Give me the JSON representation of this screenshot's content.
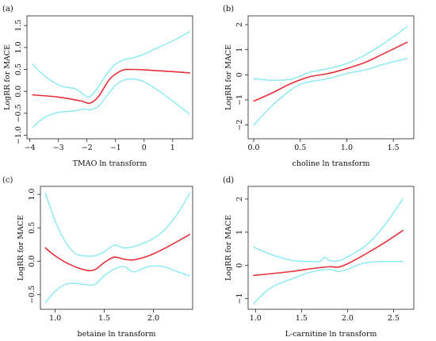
{
  "colors": {
    "fit": "#e8303a",
    "ci": "#7fe8ef",
    "axis": "#222222"
  },
  "chart_data": [
    {
      "panel": "(a)",
      "type": "line",
      "xlabel": "TMAO ln transform",
      "ylabel": "LogRR for MACE",
      "xlim": [
        -4.1,
        1.7
      ],
      "ylim": [
        -1.08,
        1.72
      ],
      "xticks": [
        -4,
        -3,
        -2,
        -1,
        0,
        1
      ],
      "xtick_labels": [
        "−4",
        "−3",
        "−2",
        "−1",
        "0",
        "1"
      ],
      "yticks": [
        -1.0,
        -0.5,
        0.0,
        0.5,
        1.0,
        1.5
      ],
      "ytick_labels": [
        "−1.0",
        "−0.5",
        "0.0",
        "0.5",
        "1.0",
        "1.5"
      ],
      "series": [
        {
          "role": "fit",
          "x": [
            -3.9,
            -3.0,
            -2.2,
            -1.9,
            -1.6,
            -1.2,
            -0.8,
            -0.5,
            0.0,
            0.5,
            1.0,
            1.6
          ],
          "y": [
            -0.08,
            -0.13,
            -0.22,
            -0.27,
            -0.12,
            0.28,
            0.47,
            0.5,
            0.49,
            0.47,
            0.45,
            0.42
          ]
        },
        {
          "role": "upper",
          "x": [
            -3.9,
            -3.6,
            -3.2,
            -2.8,
            -2.4,
            -2.1,
            -1.9,
            -1.6,
            -1.3,
            -1.0,
            -0.7,
            -0.4,
            0.0,
            0.5,
            1.0,
            1.6
          ],
          "y": [
            0.62,
            0.42,
            0.22,
            0.1,
            0.06,
            -0.08,
            -0.12,
            0.1,
            0.4,
            0.62,
            0.72,
            0.76,
            0.85,
            1.0,
            1.15,
            1.36
          ]
        },
        {
          "role": "lower",
          "x": [
            -3.9,
            -3.5,
            -3.0,
            -2.5,
            -2.1,
            -1.9,
            -1.6,
            -1.3,
            -1.0,
            -0.7,
            -0.4,
            0.0,
            0.5,
            1.0,
            1.6
          ],
          "y": [
            -0.82,
            -0.6,
            -0.48,
            -0.45,
            -0.4,
            -0.42,
            -0.34,
            -0.1,
            0.14,
            0.26,
            0.28,
            0.22,
            0.02,
            -0.22,
            -0.52
          ]
        }
      ]
    },
    {
      "panel": "(b)",
      "type": "line",
      "xlabel": "choline ln transform",
      "ylabel": "LogRR for MACE",
      "xlim": [
        -0.06,
        1.72
      ],
      "ylim": [
        -2.55,
        2.35
      ],
      "xticks": [
        0.0,
        0.5,
        1.0,
        1.5
      ],
      "xtick_labels": [
        "0.0",
        "0.5",
        "1.0",
        "1.5"
      ],
      "yticks": [
        -2,
        -1,
        0,
        1,
        2
      ],
      "ytick_labels": [
        "−2",
        "−1",
        "0",
        "1",
        "2"
      ],
      "series": [
        {
          "role": "fit",
          "x": [
            0.0,
            0.2,
            0.4,
            0.6,
            0.8,
            1.0,
            1.2,
            1.4,
            1.65
          ],
          "y": [
            -1.05,
            -0.72,
            -0.35,
            -0.08,
            0.05,
            0.25,
            0.5,
            0.85,
            1.3
          ]
        },
        {
          "role": "upper",
          "x": [
            0.0,
            0.2,
            0.4,
            0.5,
            0.6,
            0.8,
            1.0,
            1.2,
            1.4,
            1.65
          ],
          "y": [
            -0.15,
            -0.22,
            -0.18,
            -0.05,
            0.1,
            0.25,
            0.45,
            0.8,
            1.25,
            1.92
          ]
        },
        {
          "role": "lower",
          "x": [
            0.0,
            0.2,
            0.4,
            0.5,
            0.6,
            0.8,
            1.0,
            1.2,
            1.4,
            1.65
          ],
          "y": [
            -2.0,
            -1.22,
            -0.6,
            -0.38,
            -0.28,
            -0.15,
            0.05,
            0.2,
            0.42,
            0.65
          ]
        }
      ]
    },
    {
      "panel": "(c)",
      "type": "line",
      "xlabel": "betaine ln transform",
      "ylabel": "LogRR for MACE",
      "xlim": [
        0.85,
        2.4
      ],
      "ylim": [
        -0.72,
        1.12
      ],
      "xticks": [
        1.0,
        1.5,
        2.0
      ],
      "xtick_labels": [
        "1.0",
        "1.5",
        "2.0"
      ],
      "yticks": [
        -0.5,
        0.0,
        0.5,
        1.0
      ],
      "ytick_labels": [
        "−0.5",
        "0.0",
        "0.5",
        "1.0"
      ],
      "series": [
        {
          "role": "fit",
          "x": [
            0.9,
            1.0,
            1.15,
            1.3,
            1.4,
            1.5,
            1.6,
            1.7,
            1.8,
            1.95,
            2.1,
            2.25,
            2.37
          ],
          "y": [
            0.2,
            0.08,
            -0.05,
            -0.13,
            -0.13,
            -0.02,
            0.06,
            0.03,
            0.02,
            0.08,
            0.18,
            0.3,
            0.4
          ]
        },
        {
          "role": "upper",
          "x": [
            0.9,
            1.0,
            1.1,
            1.2,
            1.3,
            1.4,
            1.5,
            1.6,
            1.7,
            1.8,
            1.95,
            2.1,
            2.25,
            2.37
          ],
          "y": [
            1.02,
            0.6,
            0.3,
            0.12,
            0.08,
            0.08,
            0.14,
            0.24,
            0.2,
            0.22,
            0.3,
            0.45,
            0.72,
            1.02
          ]
        },
        {
          "role": "lower",
          "x": [
            0.9,
            1.0,
            1.1,
            1.2,
            1.3,
            1.4,
            1.5,
            1.6,
            1.7,
            1.8,
            1.95,
            2.1,
            2.25,
            2.37
          ],
          "y": [
            -0.62,
            -0.45,
            -0.35,
            -0.33,
            -0.35,
            -0.35,
            -0.22,
            -0.12,
            -0.08,
            -0.16,
            -0.08,
            -0.08,
            -0.16,
            -0.22
          ]
        }
      ]
    },
    {
      "panel": "(d)",
      "type": "line",
      "xlabel": "L-carnitine ln transform",
      "ylabel": "LogRR for MACE",
      "xlim": [
        0.92,
        2.72
      ],
      "ylim": [
        -1.32,
        2.38
      ],
      "xticks": [
        1.0,
        1.5,
        2.0,
        2.5
      ],
      "xtick_labels": [
        "1.0",
        "1.5",
        "2.0",
        "2.5"
      ],
      "yticks": [
        -1,
        0,
        1,
        2
      ],
      "ytick_labels": [
        "−1",
        "0",
        "1",
        "2"
      ],
      "series": [
        {
          "role": "fit",
          "x": [
            0.98,
            1.2,
            1.4,
            1.6,
            1.8,
            1.9,
            2.0,
            2.2,
            2.4,
            2.6
          ],
          "y": [
            -0.3,
            -0.24,
            -0.18,
            -0.1,
            -0.04,
            -0.05,
            0.05,
            0.35,
            0.68,
            1.05
          ]
        },
        {
          "role": "upper",
          "x": [
            0.98,
            1.2,
            1.4,
            1.6,
            1.7,
            1.75,
            1.8,
            1.9,
            2.0,
            2.2,
            2.4,
            2.6
          ],
          "y": [
            0.55,
            0.3,
            0.15,
            0.12,
            0.12,
            0.25,
            0.15,
            0.14,
            0.26,
            0.6,
            1.2,
            2.0
          ]
        },
        {
          "role": "lower",
          "x": [
            0.98,
            1.1,
            1.2,
            1.4,
            1.6,
            1.8,
            1.9,
            2.0,
            2.1,
            2.2,
            2.4,
            2.6
          ],
          "y": [
            -1.15,
            -0.82,
            -0.62,
            -0.4,
            -0.2,
            -0.12,
            -0.18,
            -0.12,
            0.0,
            0.08,
            0.12,
            0.12
          ]
        }
      ]
    }
  ]
}
